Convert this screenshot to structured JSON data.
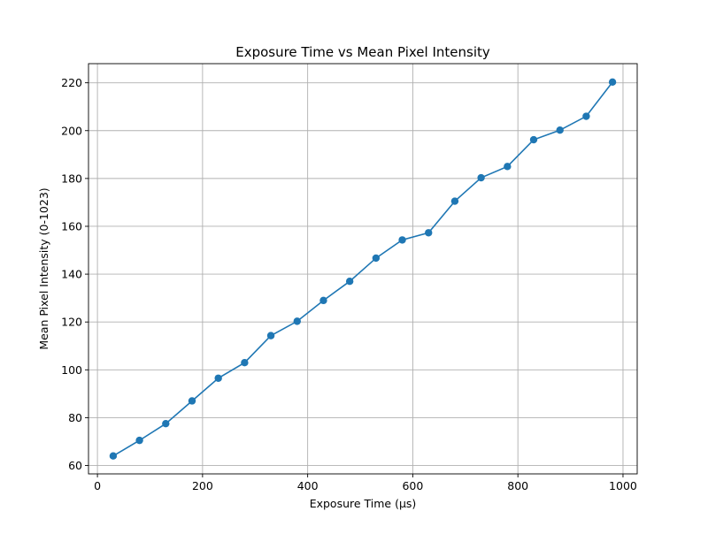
{
  "chart_data": {
    "type": "line",
    "title": "Exposure Time vs Mean Pixel Intensity",
    "xlabel": "Exposure Time (µs)",
    "ylabel": "Mean Pixel Intensity (0-1023)",
    "xlim": [
      -17,
      1027
    ],
    "ylim": [
      56.5,
      228
    ],
    "xticks": [
      0,
      200,
      400,
      600,
      800,
      1000
    ],
    "yticks": [
      60,
      80,
      100,
      120,
      140,
      160,
      180,
      200,
      220
    ],
    "grid": true,
    "legend": "none",
    "series": [
      {
        "color": "#1f77b4",
        "marker": "circle",
        "x": [
          30,
          80,
          130,
          180,
          230,
          280,
          330,
          380,
          430,
          480,
          530,
          580,
          630,
          680,
          730,
          780,
          830,
          880,
          930,
          980
        ],
        "y": [
          64.0,
          70.5,
          77.5,
          87.0,
          96.5,
          103.0,
          114.3,
          120.3,
          129.0,
          137.0,
          146.7,
          154.3,
          157.3,
          170.5,
          180.3,
          185.0,
          196.2,
          200.2,
          206.0,
          220.3
        ]
      }
    ]
  }
}
